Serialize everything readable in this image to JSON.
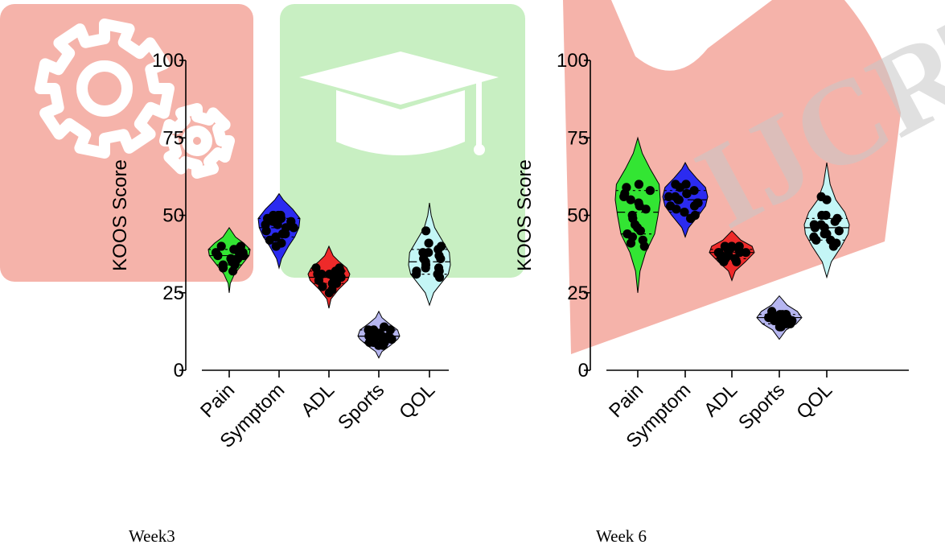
{
  "watermark": {
    "text": "IJCRT",
    "colors": {
      "red": "#f5b3aa",
      "green": "#c8efc2",
      "gear": "#ffffff"
    }
  },
  "figure": {
    "captions": [
      "Week3",
      "Week 6"
    ]
  },
  "chart_data": [
    {
      "type": "violin",
      "panel": "Week3",
      "ylabel": "KOOS Score",
      "ylim": [
        0,
        100
      ],
      "yticks": [
        0,
        25,
        50,
        75,
        100
      ],
      "categories": [
        "Pain",
        "Symptom",
        "ADL",
        "Sports",
        "QOL"
      ],
      "colors": [
        "#33e533",
        "#2b2bf0",
        "#ee2a2a",
        "#b6b6f0",
        "#c4f6f6"
      ],
      "violins": [
        {
          "category": "Pain",
          "min": 25,
          "max": 46,
          "median": 37,
          "q1": 34,
          "q3": 39,
          "profile": [
            [
              25,
              0
            ],
            [
              28,
              0.05
            ],
            [
              31,
              0.25
            ],
            [
              34,
              0.6
            ],
            [
              37,
              0.95
            ],
            [
              39,
              1.0
            ],
            [
              41,
              0.7
            ],
            [
              43,
              0.3
            ],
            [
              46,
              0
            ]
          ],
          "points": [
            32,
            33,
            34,
            35,
            35,
            36,
            37,
            37,
            38,
            38,
            39,
            39,
            40,
            40,
            37,
            36,
            34,
            38
          ]
        },
        {
          "category": "Symptom",
          "min": 33,
          "max": 57,
          "median": 46,
          "q1": 43,
          "q3": 49,
          "profile": [
            [
              33,
              0
            ],
            [
              36,
              0.12
            ],
            [
              40,
              0.45
            ],
            [
              43,
              0.75
            ],
            [
              46,
              0.95
            ],
            [
              49,
              1.0
            ],
            [
              52,
              0.65
            ],
            [
              55,
              0.2
            ],
            [
              57,
              0
            ]
          ],
          "points": [
            40,
            41,
            42,
            43,
            44,
            45,
            46,
            47,
            48,
            48,
            49,
            49,
            50,
            50,
            50,
            46,
            44,
            47
          ]
        },
        {
          "category": "ADL",
          "min": 20,
          "max": 40,
          "median": 30,
          "q1": 28,
          "q3": 32,
          "profile": [
            [
              20,
              0
            ],
            [
              23,
              0.1
            ],
            [
              26,
              0.45
            ],
            [
              29,
              0.9
            ],
            [
              31,
              1.0
            ],
            [
              33,
              0.85
            ],
            [
              35,
              0.5
            ],
            [
              37,
              0.2
            ],
            [
              40,
              0
            ]
          ],
          "points": [
            25,
            26,
            27,
            28,
            28,
            29,
            30,
            30,
            31,
            31,
            32,
            32,
            33,
            33,
            29,
            30,
            31,
            28
          ]
        },
        {
          "category": "Sports",
          "min": 4,
          "max": 19,
          "median": 11,
          "q1": 9,
          "q3": 13,
          "profile": [
            [
              4,
              0
            ],
            [
              6,
              0.15
            ],
            [
              8,
              0.55
            ],
            [
              10,
              0.9
            ],
            [
              11,
              1.0
            ],
            [
              13,
              0.9
            ],
            [
              15,
              0.5
            ],
            [
              17,
              0.15
            ],
            [
              19,
              0
            ]
          ],
          "points": [
            8,
            8,
            9,
            9,
            10,
            10,
            11,
            11,
            12,
            12,
            13,
            13,
            14,
            9,
            11,
            12,
            10,
            13
          ]
        },
        {
          "category": "QOL",
          "min": 21,
          "max": 54,
          "median": 35,
          "q1": 31,
          "q3": 39,
          "profile": [
            [
              21,
              0
            ],
            [
              25,
              0.2
            ],
            [
              28,
              0.55
            ],
            [
              31,
              0.9
            ],
            [
              34,
              1.0
            ],
            [
              38,
              0.95
            ],
            [
              42,
              0.6
            ],
            [
              46,
              0.25
            ],
            [
              50,
              0.08
            ],
            [
              54,
              0
            ]
          ],
          "points": [
            31,
            31,
            32,
            32,
            33,
            34,
            35,
            36,
            37,
            38,
            39,
            40,
            41,
            45,
            33,
            30,
            36,
            38
          ]
        }
      ]
    },
    {
      "type": "violin",
      "panel": "Week 6",
      "ylabel": "KOOS Score",
      "ylim": [
        0,
        100
      ],
      "yticks": [
        0,
        25,
        50,
        75,
        100
      ],
      "categories": [
        "Pain",
        "Symptom",
        "ADL",
        "Sports",
        "QOL"
      ],
      "colors": [
        "#33e533",
        "#2b2bf0",
        "#ee2a2a",
        "#b6b6f0",
        "#c4f6f6"
      ],
      "violins": [
        {
          "category": "Pain",
          "min": 25,
          "max": 75,
          "median": 51,
          "q1": 44,
          "q3": 58,
          "profile": [
            [
              25,
              0
            ],
            [
              32,
              0.1
            ],
            [
              38,
              0.35
            ],
            [
              44,
              0.75
            ],
            [
              50,
              0.9
            ],
            [
              55,
              1.0
            ],
            [
              60,
              0.95
            ],
            [
              65,
              0.55
            ],
            [
              70,
              0.2
            ],
            [
              75,
              0
            ]
          ],
          "points": [
            40,
            41,
            42,
            44,
            45,
            47,
            49,
            50,
            52,
            53,
            55,
            56,
            57,
            58,
            59,
            60,
            46,
            54,
            43
          ]
        },
        {
          "category": "Symptom",
          "min": 43,
          "max": 67,
          "median": 55,
          "q1": 51,
          "q3": 58,
          "profile": [
            [
              43,
              0
            ],
            [
              46,
              0.15
            ],
            [
              50,
              0.6
            ],
            [
              53,
              0.9
            ],
            [
              56,
              1.0
            ],
            [
              59,
              0.9
            ],
            [
              62,
              0.5
            ],
            [
              65,
              0.15
            ],
            [
              67,
              0
            ]
          ],
          "points": [
            49,
            50,
            51,
            52,
            53,
            54,
            55,
            55,
            56,
            56,
            57,
            58,
            59,
            60,
            60,
            54,
            53,
            57
          ]
        },
        {
          "category": "ADL",
          "min": 29,
          "max": 45,
          "median": 38,
          "q1": 36,
          "q3": 39,
          "profile": [
            [
              29,
              0
            ],
            [
              32,
              0.15
            ],
            [
              35,
              0.6
            ],
            [
              38,
              1.0
            ],
            [
              40,
              0.9
            ],
            [
              42,
              0.4
            ],
            [
              45,
              0
            ]
          ],
          "points": [
            35,
            35,
            36,
            36,
            37,
            37,
            38,
            38,
            38,
            39,
            39,
            39,
            40,
            40,
            40,
            37,
            36,
            38
          ]
        },
        {
          "category": "Sports",
          "min": 10,
          "max": 24,
          "median": 17,
          "q1": 15,
          "q3": 18,
          "profile": [
            [
              10,
              0
            ],
            [
              13,
              0.3
            ],
            [
              15,
              0.75
            ],
            [
              17,
              1.0
            ],
            [
              19,
              0.8
            ],
            [
              21,
              0.35
            ],
            [
              24,
              0
            ]
          ],
          "points": [
            14,
            14,
            15,
            15,
            16,
            16,
            16,
            17,
            17,
            17,
            18,
            18,
            18,
            19,
            15,
            16,
            17,
            18
          ]
        },
        {
          "category": "QOL",
          "min": 30,
          "max": 67,
          "median": 46,
          "q1": 42,
          "q3": 49,
          "profile": [
            [
              30,
              0
            ],
            [
              35,
              0.2
            ],
            [
              40,
              0.65
            ],
            [
              44,
              0.95
            ],
            [
              47,
              1.0
            ],
            [
              51,
              0.8
            ],
            [
              55,
              0.4
            ],
            [
              60,
              0.15
            ],
            [
              67,
              0
            ]
          ],
          "points": [
            40,
            41,
            42,
            42,
            43,
            44,
            45,
            46,
            46,
            47,
            48,
            49,
            50,
            50,
            55,
            56,
            44,
            47
          ]
        }
      ]
    }
  ]
}
